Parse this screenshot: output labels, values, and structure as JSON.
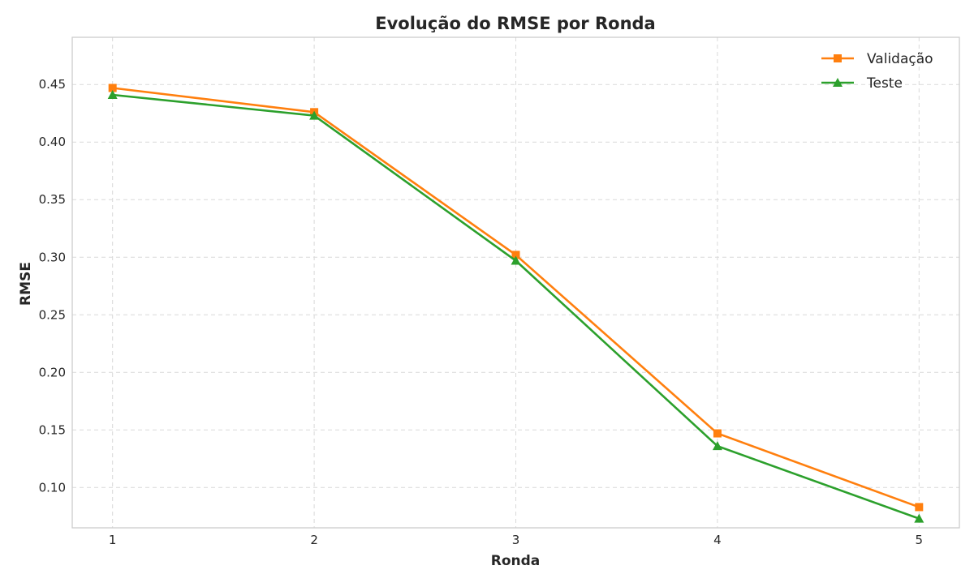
{
  "chart_data": {
    "type": "line",
    "title": "Evolução do RMSE por Ronda",
    "xlabel": "Ronda",
    "ylabel": "RMSE",
    "x": [
      1,
      2,
      3,
      4,
      5
    ],
    "x_ticks": [
      "1",
      "2",
      "3",
      "4",
      "5"
    ],
    "y_ticks": [
      "0.10",
      "0.15",
      "0.20",
      "0.25",
      "0.30",
      "0.35",
      "0.40",
      "0.45"
    ],
    "xlim": [
      0.8,
      5.2
    ],
    "ylim": [
      0.065,
      0.491
    ],
    "grid": true,
    "legend_position": "top-right",
    "series": [
      {
        "name": "Validação",
        "color": "#ff7f0e",
        "marker": "square",
        "values": [
          0.447,
          0.426,
          0.302,
          0.147,
          0.083
        ]
      },
      {
        "name": "Teste",
        "color": "#2ca02c",
        "marker": "triangle",
        "values": [
          0.441,
          0.423,
          0.297,
          0.136,
          0.073
        ]
      }
    ]
  }
}
